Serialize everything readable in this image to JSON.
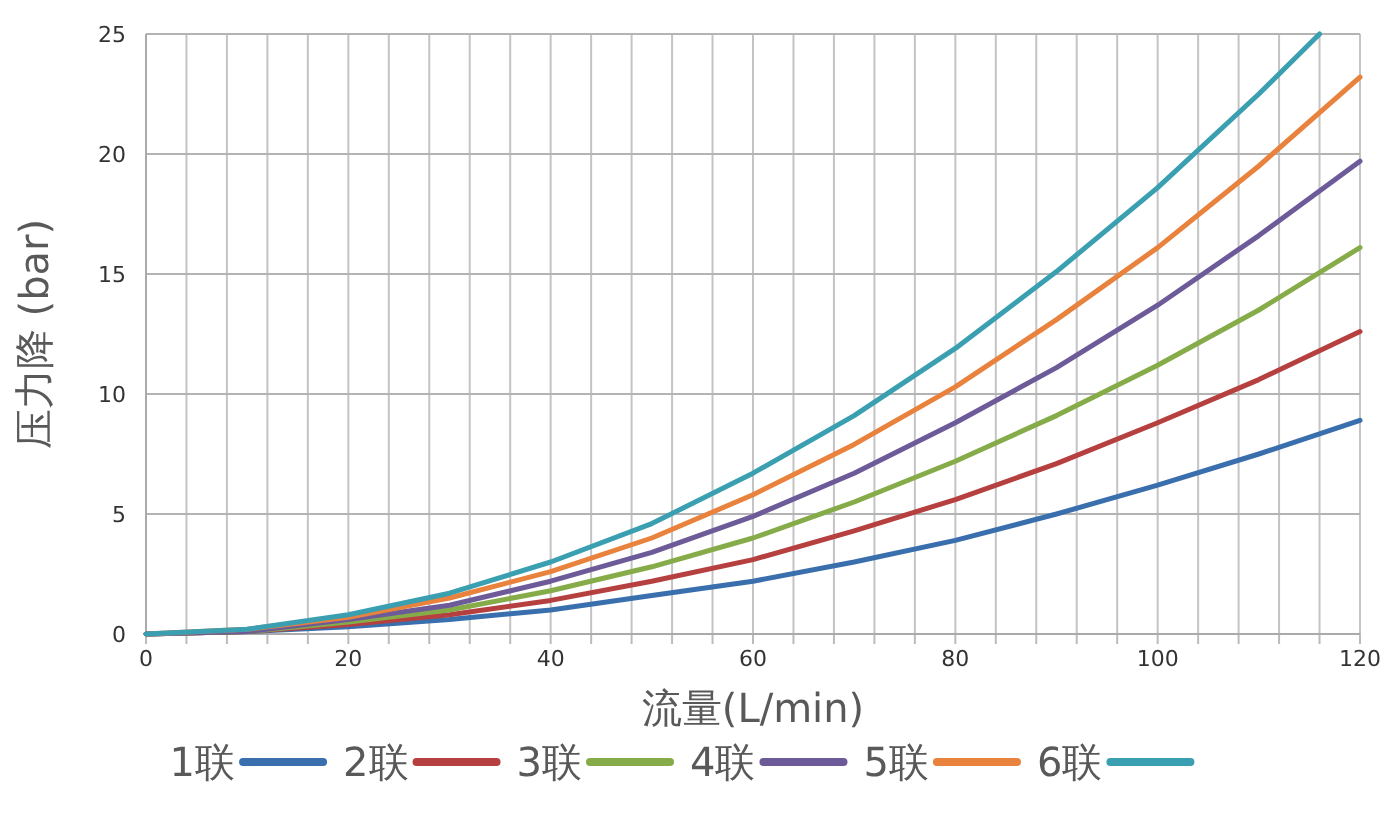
{
  "chart_data": {
    "type": "line",
    "xlabel": "流量(L/min)",
    "ylabel": "压力降 (bar)",
    "x": [
      0,
      10,
      20,
      30,
      40,
      50,
      60,
      70,
      80,
      90,
      100,
      110,
      120
    ],
    "xlim": [
      0,
      120
    ],
    "xticks": [
      0,
      {
        "value": 4,
        "label": null
      },
      {
        "value": 8,
        "label": null
      },
      {
        "value": 12,
        "label": null
      },
      {
        "value": 16,
        "label": null
      },
      20,
      {
        "value": 24,
        "label": null
      },
      {
        "value": 28,
        "label": null
      },
      {
        "value": 32,
        "label": null
      },
      {
        "value": 36,
        "label": null
      },
      40,
      {
        "value": 44,
        "label": null
      },
      {
        "value": 48,
        "label": null
      },
      {
        "value": 52,
        "label": null
      },
      {
        "value": 56,
        "label": null
      },
      60,
      {
        "value": 64,
        "label": null
      },
      {
        "value": 68,
        "label": null
      },
      {
        "value": 72,
        "label": null
      },
      {
        "value": 76,
        "label": null
      },
      80,
      {
        "value": 84,
        "label": null
      },
      {
        "value": 88,
        "label": null
      },
      {
        "value": 92,
        "label": null
      },
      {
        "value": 96,
        "label": null
      },
      100,
      {
        "value": 104,
        "label": null
      },
      {
        "value": 108,
        "label": null
      },
      {
        "value": 112,
        "label": null
      },
      {
        "value": 116,
        "label": null
      },
      120
    ],
    "ylim": [
      0,
      25
    ],
    "yticks": [
      0,
      5,
      10,
      15,
      20,
      25
    ],
    "grid": true,
    "legend": "bottom",
    "marker": "none",
    "line_style": "solid",
    "series": [
      {
        "name": "1联",
        "color": "#3a6fad",
        "values": [
          0,
          0.1,
          0.3,
          0.6,
          1.0,
          1.6,
          2.2,
          3.0,
          3.9,
          5.0,
          6.2,
          7.5,
          8.9
        ]
      },
      {
        "name": "2联",
        "color": "#b5403f",
        "values": [
          0,
          0.1,
          0.4,
          0.8,
          1.4,
          2.2,
          3.1,
          4.3,
          5.6,
          7.1,
          8.8,
          10.6,
          12.6
        ]
      },
      {
        "name": "3联",
        "color": "#86ac4a",
        "values": [
          0,
          0.1,
          0.5,
          1.0,
          1.8,
          2.8,
          4.0,
          5.5,
          7.2,
          9.1,
          11.2,
          13.5,
          16.1
        ]
      },
      {
        "name": "4联",
        "color": "#6d5a99",
        "values": [
          0,
          0.1,
          0.6,
          1.2,
          2.2,
          3.4,
          4.9,
          6.7,
          8.8,
          11.1,
          13.7,
          16.6,
          19.7
        ]
      },
      {
        "name": "5联",
        "color": "#e8823c",
        "values": [
          0,
          0.2,
          0.7,
          1.5,
          2.6,
          4.0,
          5.8,
          7.9,
          10.3,
          13.1,
          16.1,
          19.5,
          23.2
        ]
      },
      {
        "name": "6联",
        "color": "#3a9fb0",
        "x": [
          0,
          10,
          20,
          30,
          40,
          50,
          60,
          70,
          80,
          90,
          100,
          110,
          116
        ],
        "values": [
          0,
          0.2,
          0.8,
          1.7,
          3.0,
          4.6,
          6.7,
          9.1,
          11.9,
          15.1,
          18.6,
          22.5,
          25
        ]
      }
    ]
  }
}
